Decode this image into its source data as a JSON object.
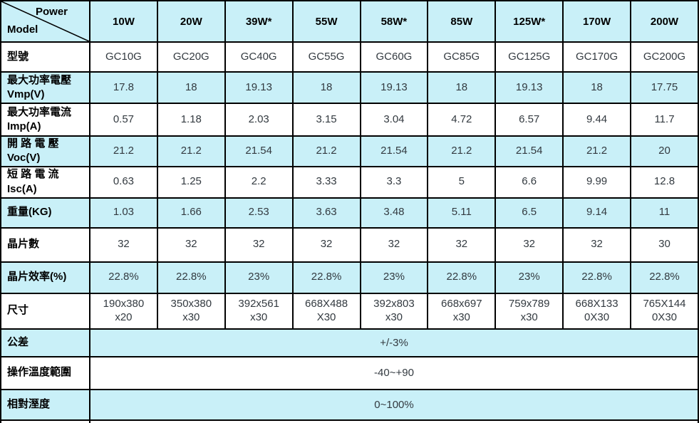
{
  "colors": {
    "cyan_row": "#c9f0f8",
    "white_row": "#ffffff",
    "border": "#000000",
    "value_text": "#333a40"
  },
  "table": {
    "corner": {
      "top": "Power",
      "bottom": "Model"
    },
    "columns": [
      "10W",
      "20W",
      "39W*",
      "55W",
      "58W*",
      "85W",
      "125W*",
      "170W",
      "200W"
    ],
    "rows": [
      {
        "label": "型號",
        "shade": "white",
        "values": [
          "GC10G",
          "GC20G",
          "GC40G",
          "GC55G",
          "GC60G",
          "GC85G",
          "GC125G",
          "GC170G",
          "GC200G"
        ]
      },
      {
        "label": "最大功率電壓\nVmp(V)",
        "shade": "cyan",
        "values": [
          "17.8",
          "18",
          "19.13",
          "18",
          "19.13",
          "18",
          "19.13",
          "18",
          "17.75"
        ]
      },
      {
        "label": "最大功率電流\nImp(A)",
        "shade": "white",
        "values": [
          "0.57",
          "1.18",
          "2.03",
          "3.15",
          "3.04",
          "4.72",
          "6.57",
          "9.44",
          "11.7"
        ]
      },
      {
        "label": "開 路 電 壓\nVoc(V)",
        "shade": "cyan",
        "values": [
          "21.2",
          "21.2",
          "21.54",
          "21.2",
          "21.54",
          "21.2",
          "21.54",
          "21.2",
          "20"
        ]
      },
      {
        "label": "短 路 電 流\nIsc(A)",
        "shade": "white",
        "values": [
          "0.63",
          "1.25",
          "2.2",
          "3.33",
          "3.3",
          "5",
          "6.6",
          "9.99",
          "12.8"
        ]
      },
      {
        "label": "重量(KG)",
        "shade": "cyan",
        "values": [
          "1.03",
          "1.66",
          "2.53",
          "3.63",
          "3.48",
          "5.11",
          "6.5",
          "9.14",
          "11"
        ]
      },
      {
        "label": "晶片數",
        "shade": "white",
        "values": [
          "32",
          "32",
          "32",
          "32",
          "32",
          "32",
          "32",
          "32",
          "30"
        ]
      },
      {
        "label": "晶片效率(%)",
        "shade": "cyan",
        "values": [
          "22.8%",
          "22.8%",
          "23%",
          "22.8%",
          "23%",
          "22.8%",
          "23%",
          "22.8%",
          "22.8%"
        ]
      },
      {
        "label": "尺寸",
        "shade": "white",
        "values": [
          "190x380\nx20",
          "350x380\nx30",
          "392x561\nx30",
          "668X488\nX30",
          "392x803\nx30",
          "668x697\nx30",
          "759x789\nx30",
          "668X133\n0X30",
          "765X144\n0X30"
        ]
      }
    ],
    "span_rows": [
      {
        "label": "公差",
        "shade": "cyan",
        "value": "+/-3%"
      },
      {
        "label": "操作溫度範圍",
        "shade": "white",
        "value": "-40~+90"
      },
      {
        "label": "相對溼度",
        "shade": "cyan",
        "value": "0~100%"
      }
    ]
  }
}
